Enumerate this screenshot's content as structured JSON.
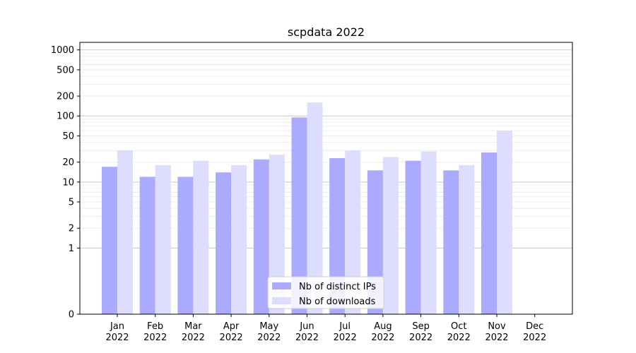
{
  "chart_data": {
    "type": "bar",
    "title": "scpdata 2022",
    "xlabel": "",
    "ylabel": "",
    "y_scale": "symlog",
    "ylim": [
      0,
      1300
    ],
    "y_ticks": [
      0,
      1,
      2,
      5,
      10,
      20,
      50,
      100,
      200,
      500,
      1000
    ],
    "grid": true,
    "legend_position": "bottom-center",
    "categories": [
      "Jan\n2022",
      "Feb\n2022",
      "Mar\n2022",
      "Apr\n2022",
      "May\n2022",
      "Jun\n2022",
      "Jul\n2022",
      "Aug\n2022",
      "Sep\n2022",
      "Oct\n2022",
      "Nov\n2022",
      "Dec\n2022"
    ],
    "series": [
      {
        "name": "Nb of distinct IPs",
        "color": "#aaaaff",
        "values": [
          17,
          12,
          12,
          14,
          22,
          95,
          23,
          15,
          21,
          15,
          28,
          0
        ]
      },
      {
        "name": "Nb of downloads",
        "color": "#ddddff",
        "values": [
          30,
          18,
          21,
          18,
          26,
          160,
          30,
          24,
          29,
          18,
          60,
          0
        ]
      }
    ]
  }
}
